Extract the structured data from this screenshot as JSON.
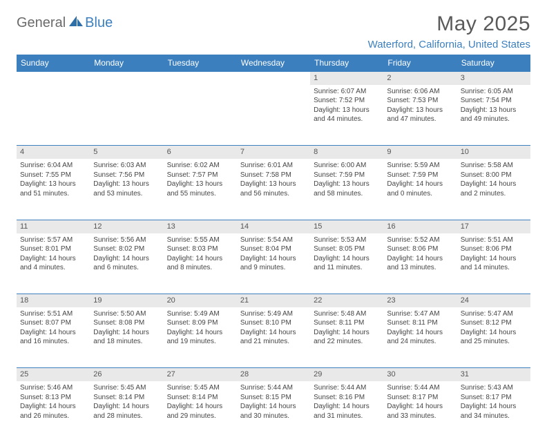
{
  "logo": {
    "part1": "General",
    "part2": "Blue"
  },
  "title": "May 2025",
  "location": "Waterford, California, United States",
  "colors": {
    "header_bg": "#3b7fbf",
    "header_text": "#ffffff",
    "daynum_bg": "#e9e9e9",
    "border": "#3b7fbf",
    "title_color": "#5a5a5a",
    "location_color": "#3b7fbf"
  },
  "day_names": [
    "Sunday",
    "Monday",
    "Tuesday",
    "Wednesday",
    "Thursday",
    "Friday",
    "Saturday"
  ],
  "weeks": [
    {
      "nums": [
        "",
        "",
        "",
        "",
        "1",
        "2",
        "3"
      ],
      "cells": [
        null,
        null,
        null,
        null,
        {
          "sunrise": "Sunrise: 6:07 AM",
          "sunset": "Sunset: 7:52 PM",
          "day1": "Daylight: 13 hours",
          "day2": "and 44 minutes."
        },
        {
          "sunrise": "Sunrise: 6:06 AM",
          "sunset": "Sunset: 7:53 PM",
          "day1": "Daylight: 13 hours",
          "day2": "and 47 minutes."
        },
        {
          "sunrise": "Sunrise: 6:05 AM",
          "sunset": "Sunset: 7:54 PM",
          "day1": "Daylight: 13 hours",
          "day2": "and 49 minutes."
        }
      ]
    },
    {
      "nums": [
        "4",
        "5",
        "6",
        "7",
        "8",
        "9",
        "10"
      ],
      "cells": [
        {
          "sunrise": "Sunrise: 6:04 AM",
          "sunset": "Sunset: 7:55 PM",
          "day1": "Daylight: 13 hours",
          "day2": "and 51 minutes."
        },
        {
          "sunrise": "Sunrise: 6:03 AM",
          "sunset": "Sunset: 7:56 PM",
          "day1": "Daylight: 13 hours",
          "day2": "and 53 minutes."
        },
        {
          "sunrise": "Sunrise: 6:02 AM",
          "sunset": "Sunset: 7:57 PM",
          "day1": "Daylight: 13 hours",
          "day2": "and 55 minutes."
        },
        {
          "sunrise": "Sunrise: 6:01 AM",
          "sunset": "Sunset: 7:58 PM",
          "day1": "Daylight: 13 hours",
          "day2": "and 56 minutes."
        },
        {
          "sunrise": "Sunrise: 6:00 AM",
          "sunset": "Sunset: 7:59 PM",
          "day1": "Daylight: 13 hours",
          "day2": "and 58 minutes."
        },
        {
          "sunrise": "Sunrise: 5:59 AM",
          "sunset": "Sunset: 7:59 PM",
          "day1": "Daylight: 14 hours",
          "day2": "and 0 minutes."
        },
        {
          "sunrise": "Sunrise: 5:58 AM",
          "sunset": "Sunset: 8:00 PM",
          "day1": "Daylight: 14 hours",
          "day2": "and 2 minutes."
        }
      ]
    },
    {
      "nums": [
        "11",
        "12",
        "13",
        "14",
        "15",
        "16",
        "17"
      ],
      "cells": [
        {
          "sunrise": "Sunrise: 5:57 AM",
          "sunset": "Sunset: 8:01 PM",
          "day1": "Daylight: 14 hours",
          "day2": "and 4 minutes."
        },
        {
          "sunrise": "Sunrise: 5:56 AM",
          "sunset": "Sunset: 8:02 PM",
          "day1": "Daylight: 14 hours",
          "day2": "and 6 minutes."
        },
        {
          "sunrise": "Sunrise: 5:55 AM",
          "sunset": "Sunset: 8:03 PM",
          "day1": "Daylight: 14 hours",
          "day2": "and 8 minutes."
        },
        {
          "sunrise": "Sunrise: 5:54 AM",
          "sunset": "Sunset: 8:04 PM",
          "day1": "Daylight: 14 hours",
          "day2": "and 9 minutes."
        },
        {
          "sunrise": "Sunrise: 5:53 AM",
          "sunset": "Sunset: 8:05 PM",
          "day1": "Daylight: 14 hours",
          "day2": "and 11 minutes."
        },
        {
          "sunrise": "Sunrise: 5:52 AM",
          "sunset": "Sunset: 8:06 PM",
          "day1": "Daylight: 14 hours",
          "day2": "and 13 minutes."
        },
        {
          "sunrise": "Sunrise: 5:51 AM",
          "sunset": "Sunset: 8:06 PM",
          "day1": "Daylight: 14 hours",
          "day2": "and 14 minutes."
        }
      ]
    },
    {
      "nums": [
        "18",
        "19",
        "20",
        "21",
        "22",
        "23",
        "24"
      ],
      "cells": [
        {
          "sunrise": "Sunrise: 5:51 AM",
          "sunset": "Sunset: 8:07 PM",
          "day1": "Daylight: 14 hours",
          "day2": "and 16 minutes."
        },
        {
          "sunrise": "Sunrise: 5:50 AM",
          "sunset": "Sunset: 8:08 PM",
          "day1": "Daylight: 14 hours",
          "day2": "and 18 minutes."
        },
        {
          "sunrise": "Sunrise: 5:49 AM",
          "sunset": "Sunset: 8:09 PM",
          "day1": "Daylight: 14 hours",
          "day2": "and 19 minutes."
        },
        {
          "sunrise": "Sunrise: 5:49 AM",
          "sunset": "Sunset: 8:10 PM",
          "day1": "Daylight: 14 hours",
          "day2": "and 21 minutes."
        },
        {
          "sunrise": "Sunrise: 5:48 AM",
          "sunset": "Sunset: 8:11 PM",
          "day1": "Daylight: 14 hours",
          "day2": "and 22 minutes."
        },
        {
          "sunrise": "Sunrise: 5:47 AM",
          "sunset": "Sunset: 8:11 PM",
          "day1": "Daylight: 14 hours",
          "day2": "and 24 minutes."
        },
        {
          "sunrise": "Sunrise: 5:47 AM",
          "sunset": "Sunset: 8:12 PM",
          "day1": "Daylight: 14 hours",
          "day2": "and 25 minutes."
        }
      ]
    },
    {
      "nums": [
        "25",
        "26",
        "27",
        "28",
        "29",
        "30",
        "31"
      ],
      "cells": [
        {
          "sunrise": "Sunrise: 5:46 AM",
          "sunset": "Sunset: 8:13 PM",
          "day1": "Daylight: 14 hours",
          "day2": "and 26 minutes."
        },
        {
          "sunrise": "Sunrise: 5:45 AM",
          "sunset": "Sunset: 8:14 PM",
          "day1": "Daylight: 14 hours",
          "day2": "and 28 minutes."
        },
        {
          "sunrise": "Sunrise: 5:45 AM",
          "sunset": "Sunset: 8:14 PM",
          "day1": "Daylight: 14 hours",
          "day2": "and 29 minutes."
        },
        {
          "sunrise": "Sunrise: 5:44 AM",
          "sunset": "Sunset: 8:15 PM",
          "day1": "Daylight: 14 hours",
          "day2": "and 30 minutes."
        },
        {
          "sunrise": "Sunrise: 5:44 AM",
          "sunset": "Sunset: 8:16 PM",
          "day1": "Daylight: 14 hours",
          "day2": "and 31 minutes."
        },
        {
          "sunrise": "Sunrise: 5:44 AM",
          "sunset": "Sunset: 8:17 PM",
          "day1": "Daylight: 14 hours",
          "day2": "and 33 minutes."
        },
        {
          "sunrise": "Sunrise: 5:43 AM",
          "sunset": "Sunset: 8:17 PM",
          "day1": "Daylight: 14 hours",
          "day2": "and 34 minutes."
        }
      ]
    }
  ]
}
